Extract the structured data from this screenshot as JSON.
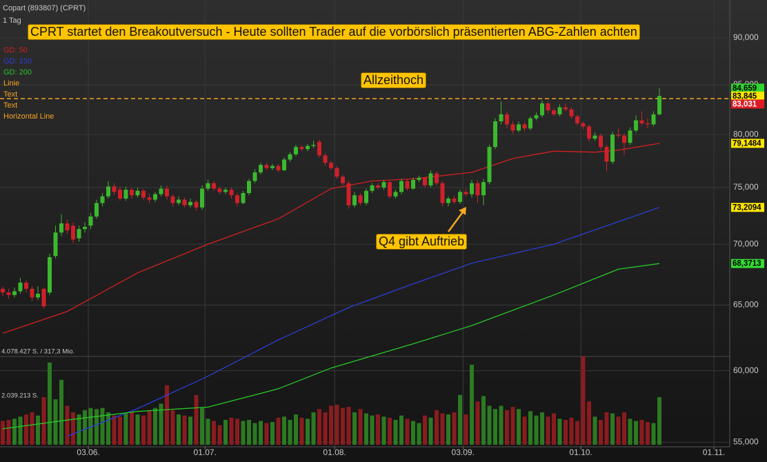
{
  "chart_data": {
    "type": "candlestick",
    "header": {
      "name": "Copart (893807) (CPRT)",
      "interval": "1 Tag"
    },
    "legend": [
      {
        "name": "GD: 50",
        "color": "#d42020"
      },
      {
        "name": "GD: 150",
        "color": "#2b3fd6"
      },
      {
        "name": "GD: 200",
        "color": "#28c828"
      },
      {
        "name": "Linie",
        "color": "#f5a623"
      },
      {
        "name": "Text",
        "color": "#f5a623"
      },
      {
        "name": "Text",
        "color": "#f5a623"
      },
      {
        "name": "Horizontal Line",
        "color": "#f5a623"
      }
    ],
    "annotations": [
      {
        "text": "CPRT startet den Breakoutversuch - Heute sollten Trader auf die vorbörslich präsentierten ABG-Zahlen achten"
      },
      {
        "text": "Allzeithoch"
      },
      {
        "text": "Q4 gibt Auftrieb"
      }
    ],
    "log_scale": true,
    "grid": true,
    "up_color": "#3cb82e",
    "down_color": "#d0202a",
    "volume_up_color": "#2c7a22",
    "volume_down_color": "#8a1c1f",
    "xlim": [
      -0.47,
      124
    ],
    "xticks": [
      {
        "value": 14.6,
        "label": "03.06."
      },
      {
        "value": 34.5,
        "label": "01.07."
      },
      {
        "value": 56.6,
        "label": "01.08."
      },
      {
        "value": 78.5,
        "label": "03.09."
      },
      {
        "value": 98.6,
        "label": "01.10."
      },
      {
        "value": 121.3,
        "label": "01.11."
      }
    ],
    "ylim": [
      54.69,
      94.25
    ],
    "yticks": [
      {
        "value": 55,
        "label": "55,000"
      },
      {
        "value": 60,
        "label": "60,000"
      },
      {
        "value": 65,
        "label": "65,000"
      },
      {
        "value": 70,
        "label": "70,000"
      },
      {
        "value": 75,
        "label": "75,000"
      },
      {
        "value": 80,
        "label": "80,000"
      },
      {
        "value": 85,
        "label": "85,000"
      },
      {
        "value": 90,
        "label": "90,000"
      }
    ],
    "hline": {
      "value": 83.58,
      "color": "#f5a623"
    },
    "candles": [
      [
        66.3,
        66.5,
        65.7,
        66.0
      ],
      [
        66.0,
        66.3,
        65.5,
        65.8
      ],
      [
        65.8,
        66.4,
        65.6,
        66.1
      ],
      [
        66.1,
        67.2,
        65.9,
        66.8
      ],
      [
        66.8,
        67.0,
        66.0,
        66.3
      ],
      [
        66.3,
        66.5,
        65.3,
        65.6
      ],
      [
        65.6,
        66.5,
        65.4,
        65.9
      ],
      [
        66.3,
        66.4,
        64.7,
        64.9
      ],
      [
        66.0,
        69.2,
        65.8,
        68.9
      ],
      [
        69.0,
        71.6,
        68.8,
        71.0
      ],
      [
        71.0,
        72.6,
        70.7,
        71.8
      ],
      [
        71.8,
        72.1,
        70.9,
        71.2
      ],
      [
        71.6,
        71.9,
        70.1,
        70.4
      ],
      [
        70.5,
        71.6,
        70.2,
        71.3
      ],
      [
        71.3,
        71.9,
        71.0,
        71.5
      ],
      [
        71.6,
        72.7,
        71.3,
        72.4
      ],
      [
        72.4,
        73.9,
        72.2,
        73.6
      ],
      [
        73.6,
        74.5,
        73.3,
        74.2
      ],
      [
        74.2,
        75.6,
        74.0,
        75.1
      ],
      [
        75.1,
        75.4,
        74.3,
        74.6
      ],
      [
        74.8,
        75.1,
        73.8,
        74.0
      ],
      [
        74.0,
        75.1,
        73.8,
        74.8
      ],
      [
        74.8,
        75.0,
        74.0,
        74.3
      ],
      [
        74.3,
        75.0,
        74.1,
        74.7
      ],
      [
        74.7,
        74.9,
        73.9,
        74.1
      ],
      [
        74.1,
        74.4,
        73.6,
        73.9
      ],
      [
        73.9,
        74.6,
        73.7,
        74.4
      ],
      [
        74.4,
        75.2,
        74.2,
        74.9
      ],
      [
        74.9,
        75.2,
        73.9,
        74.2
      ],
      [
        74.2,
        74.4,
        73.3,
        73.6
      ],
      [
        73.6,
        74.2,
        73.4,
        73.9
      ],
      [
        73.9,
        74.1,
        73.2,
        73.4
      ],
      [
        73.4,
        74.0,
        73.2,
        73.7
      ],
      [
        73.7,
        73.9,
        72.9,
        73.2
      ],
      [
        73.2,
        75.2,
        73.0,
        74.9
      ],
      [
        74.9,
        75.7,
        74.7,
        75.4
      ],
      [
        75.4,
        75.6,
        74.7,
        74.9
      ],
      [
        74.9,
        75.1,
        74.4,
        74.6
      ],
      [
        74.6,
        75.0,
        74.4,
        74.8
      ],
      [
        74.8,
        75.0,
        74.0,
        74.3
      ],
      [
        74.3,
        74.5,
        73.3,
        73.6
      ],
      [
        73.6,
        74.7,
        73.5,
        74.5
      ],
      [
        74.5,
        75.8,
        74.3,
        75.6
      ],
      [
        75.6,
        76.7,
        75.4,
        76.4
      ],
      [
        76.4,
        77.3,
        76.2,
        77.1
      ],
      [
        77.1,
        77.3,
        76.6,
        76.8
      ],
      [
        76.8,
        77.2,
        76.6,
        77.0
      ],
      [
        77.0,
        77.2,
        76.4,
        76.6
      ],
      [
        76.6,
        77.8,
        76.5,
        77.6
      ],
      [
        77.6,
        78.3,
        77.4,
        78.1
      ],
      [
        78.1,
        79.0,
        77.9,
        78.8
      ],
      [
        78.8,
        79.0,
        78.4,
        78.6
      ],
      [
        78.6,
        79.1,
        78.4,
        78.9
      ],
      [
        78.9,
        79.4,
        78.7,
        79.0
      ],
      [
        79.3,
        79.5,
        77.8,
        78.0
      ],
      [
        78.0,
        78.2,
        77.0,
        77.3
      ],
      [
        77.3,
        77.5,
        76.6,
        76.8
      ],
      [
        76.8,
        77.0,
        75.8,
        76.0
      ],
      [
        76.0,
        76.2,
        75.2,
        75.4
      ],
      [
        75.4,
        75.6,
        73.1,
        73.4
      ],
      [
        73.4,
        74.6,
        73.2,
        74.3
      ],
      [
        74.3,
        74.5,
        73.4,
        73.6
      ],
      [
        73.6,
        74.9,
        73.4,
        74.7
      ],
      [
        74.7,
        75.4,
        74.5,
        75.2
      ],
      [
        75.2,
        75.4,
        74.8,
        75.0
      ],
      [
        75.0,
        75.7,
        74.8,
        75.5
      ],
      [
        75.5,
        75.6,
        74.0,
        74.2
      ],
      [
        74.2,
        74.8,
        74.0,
        74.6
      ],
      [
        74.6,
        75.8,
        74.4,
        75.6
      ],
      [
        75.6,
        75.8,
        74.7,
        74.9
      ],
      [
        74.9,
        75.9,
        74.8,
        75.7
      ],
      [
        75.7,
        76.1,
        75.5,
        75.9
      ],
      [
        75.9,
        76.0,
        75.0,
        75.2
      ],
      [
        75.2,
        76.6,
        75.0,
        76.3
      ],
      [
        76.3,
        76.5,
        75.2,
        75.4
      ],
      [
        75.4,
        75.6,
        73.3,
        73.6
      ],
      [
        73.6,
        74.2,
        73.3,
        74.0
      ],
      [
        74.0,
        74.3,
        73.5,
        73.7
      ],
      [
        73.7,
        74.8,
        73.5,
        74.6
      ],
      [
        74.6,
        74.9,
        74.2,
        74.4
      ],
      [
        74.4,
        75.7,
        74.1,
        75.4
      ],
      [
        75.4,
        75.7,
        73.6,
        74.3
      ],
      [
        74.3,
        75.8,
        73.4,
        75.5
      ],
      [
        75.5,
        79.0,
        75.3,
        78.8
      ],
      [
        78.8,
        81.6,
        78.6,
        81.3
      ],
      [
        81.3,
        83.3,
        81.0,
        82.0
      ],
      [
        82.0,
        82.3,
        80.6,
        81.0
      ],
      [
        81.0,
        81.3,
        80.1,
        80.4
      ],
      [
        80.4,
        81.3,
        80.2,
        81.0
      ],
      [
        81.0,
        81.2,
        80.3,
        80.6
      ],
      [
        80.6,
        81.8,
        80.4,
        81.6
      ],
      [
        81.6,
        82.2,
        81.4,
        81.9
      ],
      [
        81.9,
        83.4,
        81.7,
        83.1
      ],
      [
        83.1,
        83.3,
        82.1,
        82.4
      ],
      [
        82.4,
        82.6,
        81.8,
        82.0
      ],
      [
        82.0,
        83.0,
        81.8,
        82.7
      ],
      [
        82.7,
        83.1,
        82.3,
        82.5
      ],
      [
        82.5,
        82.7,
        81.6,
        81.8
      ],
      [
        81.8,
        82.0,
        80.9,
        81.1
      ],
      [
        81.1,
        81.3,
        80.5,
        80.8
      ],
      [
        80.8,
        81.0,
        79.3,
        79.6
      ],
      [
        79.6,
        80.2,
        79.4,
        79.9
      ],
      [
        79.9,
        80.1,
        78.5,
        78.8
      ],
      [
        78.8,
        79.0,
        76.5,
        77.4
      ],
      [
        77.4,
        80.3,
        77.2,
        80.0
      ],
      [
        80.0,
        80.6,
        79.7,
        79.9
      ],
      [
        79.9,
        80.1,
        78.0,
        79.2
      ],
      [
        79.2,
        80.7,
        79.0,
        80.4
      ],
      [
        80.4,
        81.9,
        80.2,
        81.4
      ],
      [
        81.4,
        82.3,
        80.9,
        81.1
      ],
      [
        81.1,
        81.6,
        80.6,
        81.0
      ],
      [
        81.0,
        82.3,
        80.8,
        82.0
      ],
      [
        82.0,
        84.66,
        81.9,
        83.85
      ]
    ],
    "volumes": [
      1100000,
      1150000,
      1200000,
      1300000,
      1400000,
      1500000,
      1350000,
      2200000,
      3800000,
      2100000,
      3000000,
      1800000,
      1500000,
      1400000,
      1600000,
      1700000,
      1650000,
      1700000,
      1500000,
      1350000,
      1300000,
      1450000,
      1500000,
      1400000,
      1350000,
      1600000,
      1700000,
      1900000,
      2750000,
      1600000,
      1400000,
      1350000,
      1300000,
      2300000,
      1700000,
      1200000,
      1100000,
      900000,
      1150000,
      1250000,
      1200000,
      1100000,
      1150000,
      1000000,
      1100000,
      1000000,
      1050000,
      1250000,
      1300000,
      1150000,
      1400000,
      1250000,
      1200000,
      1500000,
      1650000,
      1500000,
      1800000,
      1850000,
      1700000,
      1750000,
      1500000,
      1650000,
      1450000,
      1350000,
      1400000,
      1300000,
      1250000,
      1150000,
      1350000,
      1200000,
      1100000,
      1000000,
      1350000,
      1250000,
      1600000,
      1450000,
      1400000,
      1500000,
      2300000,
      1400000,
      3700000,
      2000000,
      2250000,
      1800000,
      1650000,
      1800000,
      1600000,
      1750000,
      1650000,
      1300000,
      1550000,
      1350000,
      1500000,
      1300000,
      1450000,
      1200000,
      1150000,
      1250000,
      1100000,
      4080000,
      2000000,
      1300000,
      1150000,
      1500000,
      1450000,
      1300000,
      1500000,
      1200000,
      1100000,
      1150000,
      1050000,
      1000000,
      2200000
    ],
    "vlim": [
      0,
      4078427
    ],
    "vticks": [
      {
        "value": 4078427,
        "label": "4.078.427 S. / 317,3 Mio."
      },
      {
        "value": 2039213,
        "label": "2.039.213 S."
      }
    ],
    "ma": [
      {
        "name": "GD: 50",
        "color": "#d42020",
        "x": [
          0,
          11,
          23,
          35,
          47,
          56,
          63,
          70,
          80,
          87,
          94,
          101,
          105,
          112
        ],
        "values": [
          62.8,
          64.5,
          67.6,
          70.0,
          72.2,
          74.9,
          75.6,
          75.8,
          76.4,
          77.7,
          78.4,
          78.3,
          78.5,
          79.1484
        ]
      },
      {
        "name": "GD: 150",
        "color": "#2b3fd6",
        "x": [
          11,
          23,
          35,
          47,
          59,
          70,
          80,
          94,
          112
        ],
        "values": [
          55.4,
          57.3,
          59.6,
          62.3,
          64.8,
          66.7,
          68.4,
          70.0,
          73.2094
        ]
      },
      {
        "name": "GD: 200",
        "color": "#28c828",
        "x": [
          0,
          11,
          23,
          35,
          47,
          56,
          70,
          80,
          94,
          105,
          112
        ],
        "values": [
          55.9,
          56.5,
          57.1,
          57.4,
          58.7,
          60.2,
          62.0,
          63.4,
          65.8,
          67.9,
          68.3713
        ]
      }
    ],
    "last_labels": [
      {
        "value": 84.659,
        "label": "84,659",
        "color": "#2ed52e",
        "text_color": "#000"
      },
      {
        "value": 83.845,
        "label": "83,845",
        "color": "#ffe600",
        "text_color": "#000"
      },
      {
        "value": 83.031,
        "label": "83,031",
        "color": "#e01b24",
        "text_color": "#fff"
      },
      {
        "value": 79.1484,
        "label": "79,1484",
        "color": "#ffe600",
        "text_color": "#000"
      },
      {
        "value": 73.2094,
        "label": "73,2094",
        "color": "#ffe600",
        "text_color": "#000"
      },
      {
        "value": 68.3713,
        "label": "68,3713",
        "color": "#33dd33",
        "text_color": "#000"
      }
    ]
  }
}
